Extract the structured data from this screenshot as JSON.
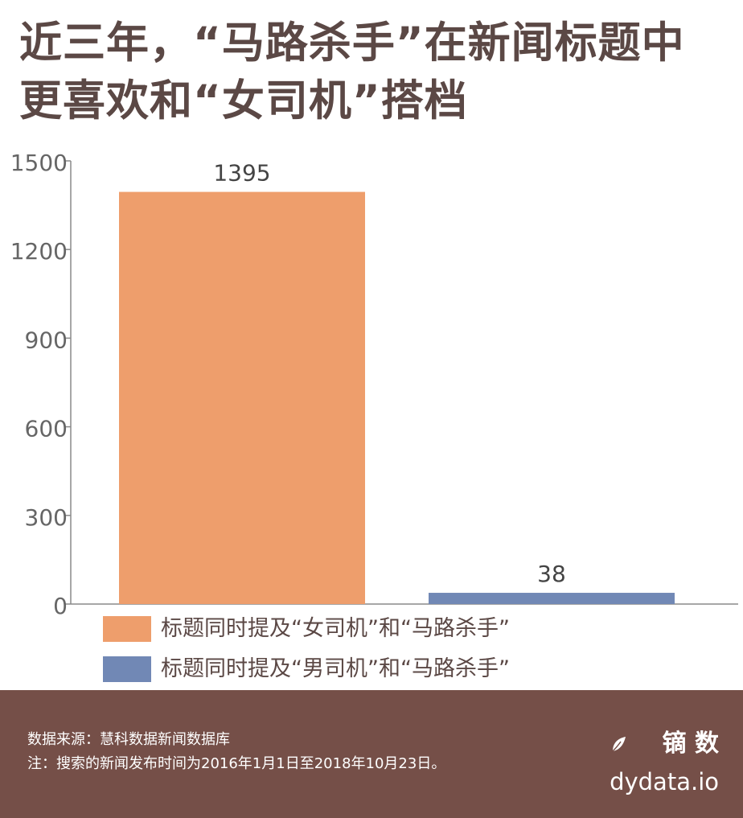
{
  "title": {
    "line1": "近三年，“马路杀手”在新闻标题中",
    "line2": "更喜欢和“女司机”搭档"
  },
  "colors": {
    "title": "#5b4845",
    "series_female": "#ee9e6c",
    "series_male": "#7188b5",
    "axis": "#8a8a8a",
    "tick_text": "#666666",
    "footer_bg": "#754f48"
  },
  "chart_data": {
    "type": "bar",
    "categories": [
      "标题同时提及“女司机”和“马路杀手”",
      "标题同时提及“男司机”和“马路杀手”"
    ],
    "values": [
      1395,
      38
    ],
    "data_labels": [
      "1395",
      "38"
    ],
    "ylim": [
      0,
      1500
    ],
    "yticks": [
      0,
      300,
      600,
      900,
      1200,
      1500
    ],
    "ytick_labels": [
      "0",
      "300",
      "600",
      "900",
      "1200",
      "1500"
    ],
    "grid": false,
    "legend_position": "bottom-left"
  },
  "legend": [
    {
      "label": "标题同时提及“女司机”和“马路杀手”",
      "color": "#ee9e6c"
    },
    {
      "label": "标题同时提及“男司机”和“马路杀手”",
      "color": "#7188b5"
    }
  ],
  "footer": {
    "source": "数据来源：慧科数据新闻数据库",
    "note": "注：搜索的新闻发布时间为2016年1月1日至2018年10月23日。",
    "brand_name": "镝 数",
    "brand_url": "dydata.io"
  }
}
